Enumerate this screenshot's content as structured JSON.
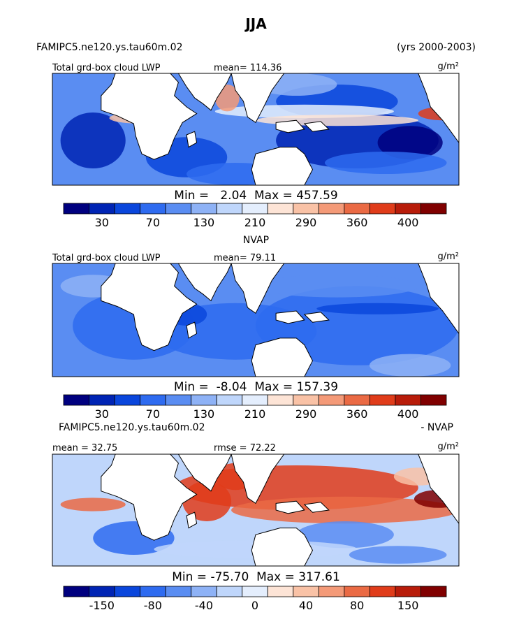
{
  "title": "JJA",
  "palette": {
    "sequential": [
      "#00007f",
      "#0024b4",
      "#0a46dc",
      "#2e6bf0",
      "#5a8df2",
      "#8eb2f6",
      "#bfd6fb",
      "#e4eefd",
      "#fde4d6",
      "#f9c2a6",
      "#f49a78",
      "#ea6a44",
      "#e03c1a",
      "#b81c0a",
      "#800000"
    ],
    "land": "#ffffff",
    "coast": "#000000"
  },
  "chart_data": [
    {
      "type": "heatmap",
      "panel_name": "FAMIPC5.ne120.ys.tau60m.02",
      "period": "(yrs 2000-2003)",
      "variable_label": "Total grd-box cloud LWP",
      "stat_label": "mean=",
      "stat_value": "114.36",
      "units": "g/m²",
      "min_label": "Min =",
      "min_value": "2.04",
      "max_label": "Max =",
      "max_value": "457.59",
      "colorbar_ticks": [
        "30",
        "70",
        "130",
        "210",
        "290",
        "360",
        "400"
      ],
      "colorbar_levels": 15
    },
    {
      "type": "heatmap",
      "panel_name": "NVAP",
      "variable_label": "Total grd-box cloud LWP",
      "stat_label": "mean=",
      "stat_value": "79.11",
      "units": "g/m²",
      "min_label": "Min =",
      "min_value": "-8.04",
      "max_label": "Max =",
      "max_value": "157.39",
      "colorbar_ticks": [
        "30",
        "70",
        "130",
        "210",
        "290",
        "360",
        "400"
      ],
      "colorbar_levels": 15
    },
    {
      "type": "heatmap",
      "panel_name": "FAMIPC5.ne120.ys.tau60m.02",
      "panel_suffix": "- NVAP",
      "stat_label": "mean =",
      "stat_value": "32.75",
      "rmse_label": "rmse =",
      "rmse_value": "72.22",
      "units": "g/m²",
      "min_label": "Min =",
      "min_value": "-75.70",
      "max_label": "Max =",
      "max_value": "317.61",
      "colorbar_ticks": [
        "-150",
        "-80",
        "-40",
        "0",
        "40",
        "80",
        "150"
      ],
      "colorbar_levels": 15
    }
  ]
}
